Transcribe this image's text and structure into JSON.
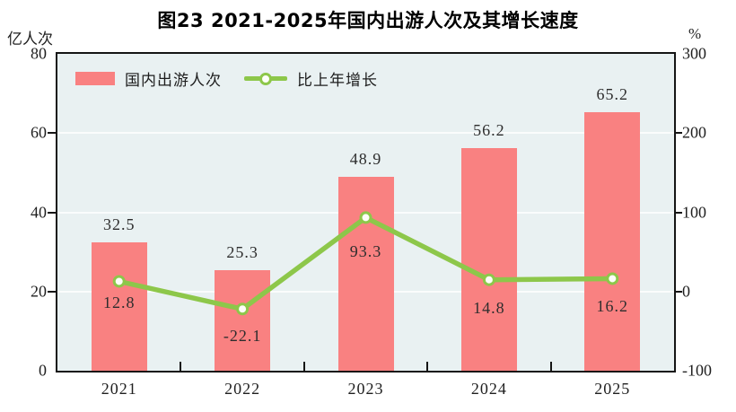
{
  "title": "图23  2021-2025年国内出游人次及其增长速度",
  "left_axis": {
    "unit": "亿人次",
    "ticks": [
      "80",
      "60",
      "40",
      "20",
      "0"
    ],
    "min": 0,
    "max": 80
  },
  "right_axis": {
    "unit": "%",
    "ticks": [
      "300",
      "200",
      "100",
      "0",
      "-100"
    ],
    "min": -100,
    "max": 300
  },
  "legend": {
    "bar": {
      "label": "国内出游人次"
    },
    "line": {
      "label": "比上年增长"
    }
  },
  "chart_data": {
    "type": "bar",
    "subtype": "bar+line combo",
    "title": "图23  2021-2025年国内出游人次及其增长速度",
    "categories": [
      "2021",
      "2022",
      "2023",
      "2024",
      "2025"
    ],
    "series": [
      {
        "name": "国内出游人次",
        "type": "bar",
        "axis": "left",
        "unit": "亿人次",
        "values": [
          32.5,
          25.3,
          48.9,
          56.2,
          65.2
        ]
      },
      {
        "name": "比上年增长",
        "type": "line",
        "axis": "right",
        "unit": "%",
        "values": [
          12.8,
          -22.1,
          93.3,
          14.8,
          16.2
        ]
      }
    ],
    "left_ylabel": "亿人次",
    "left_ylim": [
      0,
      80
    ],
    "right_ylabel": "%",
    "right_ylim": [
      -100,
      300
    ],
    "grid": true,
    "legend_position": "top-left-inside"
  },
  "colors": {
    "bar": "#f98181",
    "line": "#8dc74a",
    "marker_fill": "#fdfef8",
    "plot_bg": "#e9f1f2",
    "frame": "#151515",
    "grid": "#fafcfc",
    "label": "#2d2d2d"
  }
}
